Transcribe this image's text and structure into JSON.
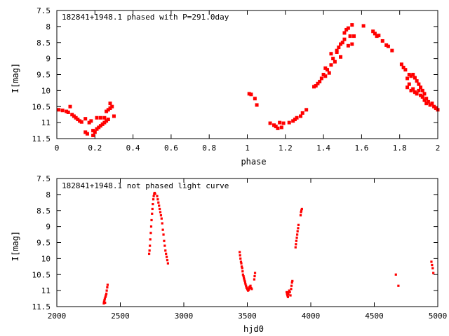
{
  "chart_data": [
    {
      "type": "scatter",
      "title": "182841+1948.1 phased with P=291.0day",
      "xlabel": "phase",
      "ylabel": "I[mag]",
      "xlim": [
        0,
        2
      ],
      "ylim": [
        11.5,
        7.5
      ],
      "y_inverted": true,
      "xticks": [
        "0",
        "0.2",
        "0.4",
        "0.6",
        "0.8",
        "1",
        "1.2",
        "1.4",
        "1.6",
        "1.8",
        "2"
      ],
      "xtick_values": [
        0,
        0.2,
        0.4,
        0.6,
        0.8,
        1.0,
        1.2,
        1.4,
        1.6,
        1.8,
        2.0
      ],
      "yticks": [
        "7.5",
        "8",
        "8.5",
        "9",
        "9.5",
        "10",
        "10.5",
        "11",
        "11.5"
      ],
      "ytick_values": [
        7.5,
        8,
        8.5,
        9,
        9.5,
        10,
        10.5,
        11,
        11.5
      ],
      "grid": false,
      "marker_color": "#ff0000",
      "points": [
        [
          0.01,
          10.6
        ],
        [
          0.03,
          10.62
        ],
        [
          0.05,
          10.65
        ],
        [
          0.06,
          10.68
        ],
        [
          0.07,
          10.5
        ],
        [
          0.08,
          10.75
        ],
        [
          0.09,
          10.8
        ],
        [
          0.1,
          10.85
        ],
        [
          0.11,
          10.9
        ],
        [
          0.12,
          10.95
        ],
        [
          0.13,
          10.98
        ],
        [
          0.15,
          10.88
        ],
        [
          0.15,
          11.3
        ],
        [
          0.16,
          11.35
        ],
        [
          0.17,
          11.0
        ],
        [
          0.18,
          10.95
        ],
        [
          0.19,
          11.25
        ],
        [
          0.19,
          11.4
        ],
        [
          0.2,
          11.3
        ],
        [
          0.21,
          10.85
        ],
        [
          0.21,
          11.2
        ],
        [
          0.22,
          11.15
        ],
        [
          0.23,
          10.85
        ],
        [
          0.23,
          11.1
        ],
        [
          0.24,
          11.05
        ],
        [
          0.25,
          10.85
        ],
        [
          0.25,
          11.0
        ],
        [
          0.26,
          10.95
        ],
        [
          0.26,
          10.65
        ],
        [
          0.27,
          10.6
        ],
        [
          0.27,
          10.9
        ],
        [
          0.28,
          10.55
        ],
        [
          0.28,
          10.4
        ],
        [
          0.29,
          10.5
        ],
        [
          0.3,
          10.8
        ],
        [
          1.01,
          10.1
        ],
        [
          1.02,
          10.12
        ],
        [
          1.04,
          10.25
        ],
        [
          1.05,
          10.45
        ],
        [
          1.12,
          11.02
        ],
        [
          1.14,
          11.08
        ],
        [
          1.15,
          11.12
        ],
        [
          1.16,
          11.18
        ],
        [
          1.17,
          11.0
        ],
        [
          1.18,
          11.15
        ],
        [
          1.19,
          11.02
        ],
        [
          1.22,
          11.0
        ],
        [
          1.24,
          10.95
        ],
        [
          1.25,
          10.9
        ],
        [
          1.26,
          10.85
        ],
        [
          1.28,
          10.8
        ],
        [
          1.29,
          10.7
        ],
        [
          1.31,
          10.6
        ],
        [
          1.35,
          9.88
        ],
        [
          1.36,
          9.85
        ],
        [
          1.37,
          9.78
        ],
        [
          1.38,
          9.72
        ],
        [
          1.39,
          9.62
        ],
        [
          1.4,
          9.5
        ],
        [
          1.41,
          9.3
        ],
        [
          1.41,
          9.55
        ],
        [
          1.42,
          9.35
        ],
        [
          1.43,
          9.45
        ],
        [
          1.44,
          9.2
        ],
        [
          1.44,
          8.85
        ],
        [
          1.45,
          9.0
        ],
        [
          1.46,
          9.1
        ],
        [
          1.47,
          8.8
        ],
        [
          1.47,
          8.75
        ],
        [
          1.48,
          8.65
        ],
        [
          1.49,
          8.55
        ],
        [
          1.49,
          8.95
        ],
        [
          1.5,
          8.5
        ],
        [
          1.51,
          8.4
        ],
        [
          1.51,
          8.2
        ],
        [
          1.52,
          8.1
        ],
        [
          1.53,
          8.05
        ],
        [
          1.53,
          8.6
        ],
        [
          1.54,
          8.3
        ],
        [
          1.55,
          7.95
        ],
        [
          1.55,
          8.55
        ],
        [
          1.56,
          8.3
        ],
        [
          1.61,
          7.98
        ],
        [
          1.66,
          8.15
        ],
        [
          1.67,
          8.22
        ],
        [
          1.68,
          8.3
        ],
        [
          1.69,
          8.28
        ],
        [
          1.71,
          8.45
        ],
        [
          1.73,
          8.58
        ],
        [
          1.74,
          8.62
        ],
        [
          1.76,
          8.75
        ],
        [
          1.81,
          9.18
        ],
        [
          1.82,
          9.28
        ],
        [
          1.83,
          9.35
        ],
        [
          1.84,
          9.62
        ],
        [
          1.84,
          9.9
        ],
        [
          1.85,
          9.5
        ],
        [
          1.85,
          9.8
        ],
        [
          1.86,
          9.55
        ],
        [
          1.86,
          10.0
        ],
        [
          1.87,
          9.5
        ],
        [
          1.87,
          9.95
        ],
        [
          1.88,
          9.6
        ],
        [
          1.88,
          10.05
        ],
        [
          1.89,
          9.7
        ],
        [
          1.89,
          10.1
        ],
        [
          1.9,
          9.8
        ],
        [
          1.9,
          10.0
        ],
        [
          1.91,
          10.15
        ],
        [
          1.91,
          9.9
        ],
        [
          1.92,
          10.0
        ],
        [
          1.92,
          10.2
        ],
        [
          1.93,
          10.3
        ],
        [
          1.93,
          10.1
        ],
        [
          1.94,
          10.25
        ],
        [
          1.94,
          10.4
        ],
        [
          1.95,
          10.35
        ],
        [
          1.96,
          10.45
        ],
        [
          1.97,
          10.4
        ],
        [
          1.98,
          10.5
        ],
        [
          1.99,
          10.55
        ],
        [
          2.0,
          10.6
        ]
      ]
    },
    {
      "type": "scatter",
      "title": "182841+1948.1 not phased light curve",
      "xlabel": "hjd0",
      "ylabel": "I[mag]",
      "xlim": [
        2000,
        5000
      ],
      "ylim": [
        11.5,
        7.5
      ],
      "y_inverted": true,
      "xticks": [
        "2000",
        "2500",
        "3000",
        "3500",
        "4000",
        "4500",
        "5000"
      ],
      "xtick_values": [
        2000,
        2500,
        3000,
        3500,
        4000,
        4500,
        5000
      ],
      "yticks": [
        "7.5",
        "8",
        "8.5",
        "9",
        "9.5",
        "10",
        "10.5",
        "11",
        "11.5"
      ],
      "ytick_values": [
        7.5,
        8,
        8.5,
        9,
        9.5,
        10,
        10.5,
        11,
        11.5
      ],
      "grid": false,
      "marker_color": "#ff0000",
      "points": [
        [
          2370,
          11.4
        ],
        [
          2372,
          11.35
        ],
        [
          2375,
          11.3
        ],
        [
          2378,
          11.25
        ],
        [
          2380,
          11.38
        ],
        [
          2383,
          11.2
        ],
        [
          2386,
          11.15
        ],
        [
          2390,
          11.1
        ],
        [
          2393,
          11.0
        ],
        [
          2397,
          10.9
        ],
        [
          2400,
          10.82
        ],
        [
          2727,
          9.85
        ],
        [
          2730,
          9.75
        ],
        [
          2733,
          9.6
        ],
        [
          2736,
          9.4
        ],
        [
          2740,
          9.2
        ],
        [
          2743,
          9.0
        ],
        [
          2746,
          8.8
        ],
        [
          2750,
          8.6
        ],
        [
          2753,
          8.45
        ],
        [
          2756,
          8.3
        ],
        [
          2760,
          8.15
        ],
        [
          2763,
          8.05
        ],
        [
          2767,
          7.98
        ],
        [
          2770,
          7.95
        ],
        [
          2774,
          7.98
        ],
        [
          2790,
          8.05
        ],
        [
          2795,
          8.15
        ],
        [
          2800,
          8.25
        ],
        [
          2805,
          8.35
        ],
        [
          2810,
          8.45
        ],
        [
          2815,
          8.55
        ],
        [
          2820,
          8.65
        ],
        [
          2825,
          8.75
        ],
        [
          2830,
          8.9
        ],
        [
          2835,
          9.1
        ],
        [
          2840,
          9.25
        ],
        [
          2845,
          9.45
        ],
        [
          2850,
          9.6
        ],
        [
          2855,
          9.75
        ],
        [
          2860,
          9.85
        ],
        [
          2865,
          9.95
        ],
        [
          2870,
          10.05
        ],
        [
          2875,
          10.15
        ],
        [
          3440,
          9.8
        ],
        [
          3443,
          9.9
        ],
        [
          3446,
          10.0
        ],
        [
          3450,
          10.1
        ],
        [
          3453,
          10.15
        ],
        [
          3456,
          10.25
        ],
        [
          3460,
          10.3
        ],
        [
          3463,
          10.4
        ],
        [
          3466,
          10.5
        ],
        [
          3470,
          10.55
        ],
        [
          3473,
          10.6
        ],
        [
          3476,
          10.65
        ],
        [
          3480,
          10.7
        ],
        [
          3483,
          10.75
        ],
        [
          3486,
          10.8
        ],
        [
          3490,
          10.85
        ],
        [
          3493,
          10.9
        ],
        [
          3496,
          10.92
        ],
        [
          3500,
          10.95
        ],
        [
          3503,
          10.97
        ],
        [
          3506,
          11.0
        ],
        [
          3510,
          10.98
        ],
        [
          3513,
          10.95
        ],
        [
          3516,
          10.9
        ],
        [
          3520,
          10.88
        ],
        [
          3525,
          10.85
        ],
        [
          3530,
          10.92
        ],
        [
          3535,
          10.95
        ],
        [
          3555,
          10.65
        ],
        [
          3558,
          10.55
        ],
        [
          3561,
          10.45
        ],
        [
          3810,
          11.05
        ],
        [
          3813,
          11.1
        ],
        [
          3816,
          11.15
        ],
        [
          3820,
          11.2
        ],
        [
          3823,
          11.12
        ],
        [
          3826,
          11.05
        ],
        [
          3830,
          11.0
        ],
        [
          3835,
          11.05
        ],
        [
          3840,
          11.15
        ],
        [
          3845,
          10.95
        ],
        [
          3848,
          10.85
        ],
        [
          3852,
          10.75
        ],
        [
          3855,
          10.7
        ],
        [
          3880,
          9.65
        ],
        [
          3883,
          9.55
        ],
        [
          3886,
          9.45
        ],
        [
          3890,
          9.35
        ],
        [
          3893,
          9.25
        ],
        [
          3896,
          9.15
        ],
        [
          3900,
          9.05
        ],
        [
          3903,
          8.95
        ],
        [
          3920,
          8.65
        ],
        [
          3923,
          8.55
        ],
        [
          3926,
          8.5
        ],
        [
          3930,
          8.45
        ],
        [
          4670,
          10.5
        ],
        [
          4690,
          10.85
        ],
        [
          4950,
          10.1
        ],
        [
          4955,
          10.2
        ],
        [
          4960,
          10.3
        ],
        [
          4965,
          10.45
        ]
      ]
    }
  ]
}
